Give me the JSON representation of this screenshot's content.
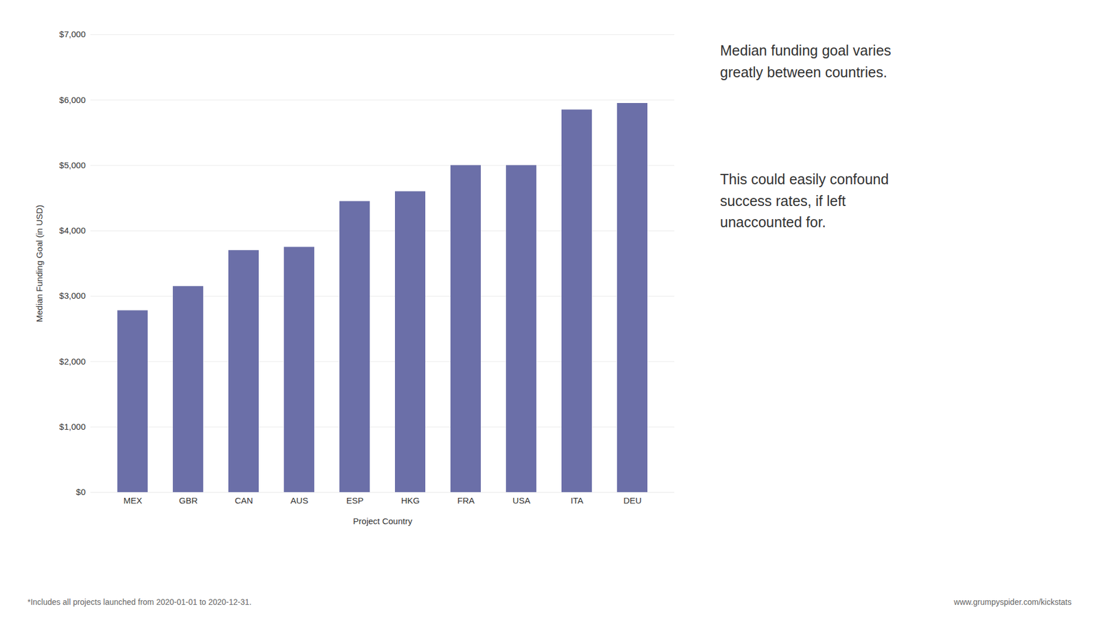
{
  "chart_data": {
    "type": "bar",
    "categories": [
      "MEX",
      "GBR",
      "CAN",
      "AUS",
      "ESP",
      "HKG",
      "FRA",
      "USA",
      "ITA",
      "DEU"
    ],
    "values": [
      2780,
      3150,
      3700,
      3750,
      4450,
      4600,
      5000,
      5000,
      5850,
      5950
    ],
    "color": "#6B6FA8",
    "xlabel": "Project Country",
    "ylabel": "Median Funding Goal (in USD)",
    "ylim": [
      0,
      7000
    ],
    "yticks": [
      {
        "value": 0,
        "label": "$0"
      },
      {
        "value": 1000,
        "label": "$1,000"
      },
      {
        "value": 2000,
        "label": "$2,000"
      },
      {
        "value": 3000,
        "label": "$3,000"
      },
      {
        "value": 4000,
        "label": "$4,000"
      },
      {
        "value": 5000,
        "label": "$5,000"
      },
      {
        "value": 6000,
        "label": "$6,000"
      },
      {
        "value": 7000,
        "label": "$7,000"
      }
    ],
    "grid": true,
    "annotations": [
      "Median funding goal varies\ngreatly between countries.",
      "This could easily confound\nsuccess rates, if left\nunaccounted for.",
      "*Includes all projects launched from 2020-01-01 to 2020-12-31.",
      "www.grumpyspider.com/kickstats"
    ]
  }
}
